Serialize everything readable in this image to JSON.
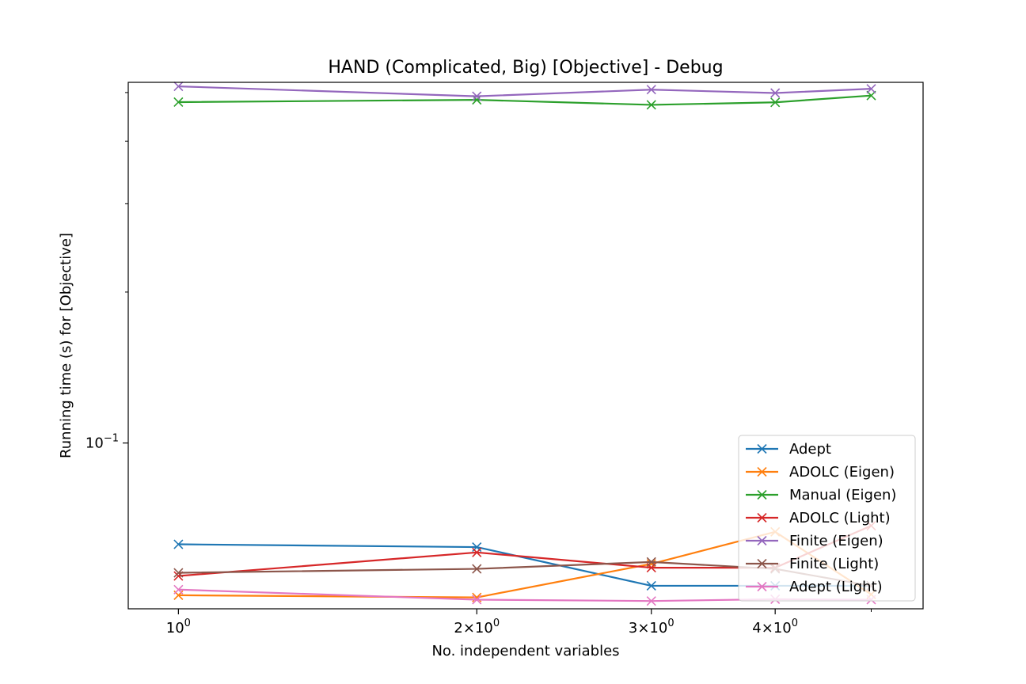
{
  "chart_data": {
    "type": "line",
    "title": "HAND (Complicated, Big) [Objective] - Debug",
    "xlabel": "No. independent variables",
    "ylabel": "Running time (s) for [Objective]",
    "xscale": "log",
    "yscale": "log",
    "x": [
      1,
      2,
      3,
      4,
      5
    ],
    "xlim": [
      0.89,
      5.64
    ],
    "ylim": [
      0.0467,
      0.524
    ],
    "xticks": [
      {
        "value": 1,
        "base": "10",
        "exp": "0"
      },
      {
        "value": 2,
        "base": "2×10",
        "exp": "0"
      },
      {
        "value": 3,
        "base": "3×10",
        "exp": "0"
      },
      {
        "value": 4,
        "base": "4×10",
        "exp": "0"
      }
    ],
    "yticks": [
      {
        "value": 0.1,
        "base": "10",
        "exp": "−1"
      }
    ],
    "grid": false,
    "legend_position": "lower right",
    "series": [
      {
        "name": "Adept",
        "color": "#1f77b4",
        "values": [
          0.0628,
          0.062,
          0.0519,
          0.0519,
          0.0519
        ]
      },
      {
        "name": "ADOLC (Eigen)",
        "color": "#ff7f0e",
        "values": [
          0.0497,
          0.0492,
          0.0574,
          0.0665,
          0.0499
        ]
      },
      {
        "name": "Manual (Eigen)",
        "color": "#2ca02c",
        "values": [
          0.4785,
          0.4835,
          0.4725,
          0.478,
          0.4932
        ]
      },
      {
        "name": "ADOLC (Light)",
        "color": "#d62728",
        "values": [
          0.0543,
          0.0605,
          0.0564,
          0.0564,
          0.0684
        ]
      },
      {
        "name": "Finite (Eigen)",
        "color": "#9467bd",
        "values": [
          0.5144,
          0.4915,
          0.5067,
          0.4989,
          0.5087
        ]
      },
      {
        "name": "Finite (Light)",
        "color": "#8c564b",
        "values": [
          0.0551,
          0.0561,
          0.0579,
          0.0561,
          0.0519
        ]
      },
      {
        "name": "Adept (Light)",
        "color": "#e377c2",
        "values": [
          0.051,
          0.0487,
          0.0484,
          0.0488,
          0.0487
        ]
      }
    ]
  }
}
